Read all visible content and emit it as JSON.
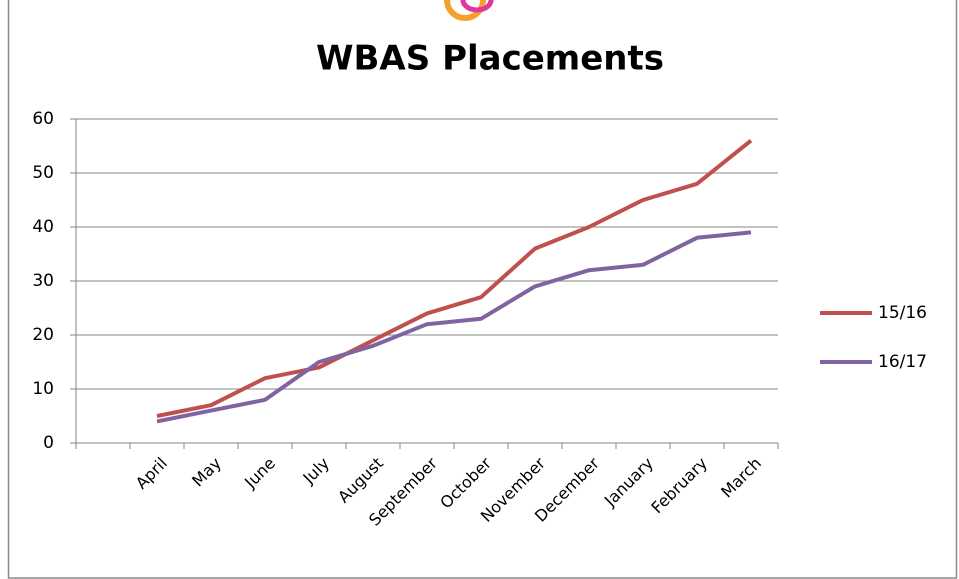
{
  "chart_data": {
    "type": "line",
    "title": "WBAS Placements",
    "categories": [
      null,
      "April",
      "May",
      "June",
      "July",
      "August",
      "September",
      "October",
      "November",
      "December",
      "January",
      "February",
      "March"
    ],
    "series": [
      {
        "name": "15/16",
        "color": "#c0504d",
        "values": [
          null,
          5,
          7,
          12,
          14,
          19,
          24,
          27,
          36,
          40,
          45,
          48,
          56
        ]
      },
      {
        "name": "16/17",
        "color": "#8064a2",
        "values": [
          null,
          4,
          6,
          8,
          15,
          18,
          22,
          23,
          29,
          32,
          33,
          38,
          39
        ]
      }
    ],
    "ylim": [
      0,
      60
    ],
    "yticks": [
      0,
      10,
      20,
      30,
      40,
      50,
      60
    ],
    "grid": true,
    "legend": "right"
  }
}
